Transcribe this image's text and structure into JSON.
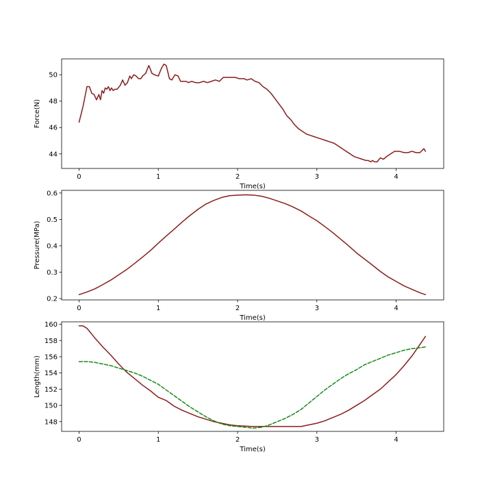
{
  "chart_data": [
    {
      "type": "line",
      "xlabel": "Time(s)",
      "ylabel": "Force(N)",
      "xlim": [
        -0.22,
        4.6
      ],
      "ylim": [
        42.9,
        51.2
      ],
      "xticks": [
        0,
        1,
        2,
        3,
        4
      ],
      "yticks": [
        44,
        46,
        48,
        50
      ],
      "grid": false,
      "series": [
        {
          "color": "#8b1a1a",
          "linestyle": "solid",
          "x": [
            0,
            0.05,
            0.1,
            0.13,
            0.16,
            0.19,
            0.22,
            0.25,
            0.27,
            0.29,
            0.31,
            0.33,
            0.35,
            0.37,
            0.39,
            0.41,
            0.43,
            0.45,
            0.48,
            0.52,
            0.55,
            0.58,
            0.61,
            0.64,
            0.66,
            0.69,
            0.72,
            0.75,
            0.78,
            0.8,
            0.84,
            0.88,
            0.92,
            0.95,
            1.0,
            1.04,
            1.07,
            1.1,
            1.14,
            1.17,
            1.21,
            1.25,
            1.28,
            1.31,
            1.35,
            1.38,
            1.42,
            1.47,
            1.52,
            1.57,
            1.62,
            1.67,
            1.72,
            1.77,
            1.82,
            1.87,
            1.92,
            1.97,
            2.02,
            2.08,
            2.12,
            2.17,
            2.22,
            2.27,
            2.32,
            2.37,
            2.42,
            2.47,
            2.52,
            2.57,
            2.62,
            2.67,
            2.72,
            2.77,
            2.82,
            2.87,
            2.92,
            2.97,
            3.02,
            3.07,
            3.12,
            3.17,
            3.22,
            3.27,
            3.32,
            3.37,
            3.42,
            3.47,
            3.52,
            3.57,
            3.62,
            3.65,
            3.68,
            3.7,
            3.73,
            3.76,
            3.8,
            3.84,
            3.88,
            3.93,
            3.98,
            4.04,
            4.1,
            4.15,
            4.2,
            4.25,
            4.3,
            4.35,
            4.37
          ],
          "y": [
            46.4,
            47.6,
            49.1,
            49.1,
            48.6,
            48.5,
            48.1,
            48.5,
            48.1,
            48.8,
            48.6,
            49.0,
            48.9,
            49.1,
            48.8,
            49.0,
            48.8,
            48.9,
            48.9,
            49.2,
            49.6,
            49.2,
            49.4,
            49.9,
            49.7,
            50.0,
            49.9,
            49.7,
            49.7,
            49.9,
            50.1,
            50.7,
            50.1,
            50.0,
            49.9,
            50.5,
            50.8,
            50.7,
            49.7,
            49.6,
            50.0,
            49.9,
            49.5,
            49.5,
            49.5,
            49.4,
            49.5,
            49.4,
            49.4,
            49.5,
            49.4,
            49.5,
            49.6,
            49.5,
            49.8,
            49.8,
            49.8,
            49.8,
            49.7,
            49.7,
            49.6,
            49.7,
            49.5,
            49.4,
            49.1,
            48.9,
            48.6,
            48.2,
            47.8,
            47.4,
            46.9,
            46.6,
            46.2,
            45.9,
            45.7,
            45.5,
            45.4,
            45.3,
            45.2,
            45.1,
            45.0,
            44.9,
            44.8,
            44.6,
            44.4,
            44.2,
            44.0,
            43.8,
            43.7,
            43.6,
            43.5,
            43.5,
            43.4,
            43.5,
            43.4,
            43.4,
            43.7,
            43.6,
            43.8,
            44.0,
            44.2,
            44.2,
            44.1,
            44.1,
            44.2,
            44.1,
            44.1,
            44.4,
            44.2
          ]
        }
      ]
    },
    {
      "type": "line",
      "xlabel": "Time(s)",
      "ylabel": "Pressure(MPa)",
      "xlim": [
        -0.22,
        4.6
      ],
      "ylim": [
        0.195,
        0.61
      ],
      "xticks": [
        0,
        1,
        2,
        3,
        4
      ],
      "yticks": [
        0.2,
        0.3,
        0.4,
        0.5,
        0.6
      ],
      "grid": false,
      "series": [
        {
          "color": "#8b1a1a",
          "linestyle": "solid",
          "x": [
            0,
            0.1,
            0.2,
            0.3,
            0.4,
            0.5,
            0.6,
            0.7,
            0.8,
            0.9,
            1.0,
            1.1,
            1.2,
            1.3,
            1.4,
            1.5,
            1.6,
            1.7,
            1.8,
            1.9,
            2.0,
            2.1,
            2.2,
            2.3,
            2.4,
            2.5,
            2.6,
            2.7,
            2.8,
            2.9,
            3.0,
            3.1,
            3.2,
            3.3,
            3.4,
            3.5,
            3.6,
            3.7,
            3.8,
            3.9,
            4.0,
            4.1,
            4.2,
            4.3,
            4.37
          ],
          "y": [
            0.215,
            0.225,
            0.237,
            0.253,
            0.27,
            0.29,
            0.31,
            0.333,
            0.357,
            0.382,
            0.41,
            0.437,
            0.463,
            0.49,
            0.515,
            0.538,
            0.558,
            0.572,
            0.583,
            0.59,
            0.592,
            0.593,
            0.592,
            0.588,
            0.58,
            0.57,
            0.56,
            0.547,
            0.532,
            0.513,
            0.495,
            0.473,
            0.45,
            0.425,
            0.4,
            0.373,
            0.35,
            0.327,
            0.303,
            0.282,
            0.265,
            0.248,
            0.235,
            0.222,
            0.215
          ]
        }
      ]
    },
    {
      "type": "line",
      "xlabel": "Time(s)",
      "ylabel": "Length(mm)",
      "xlim": [
        -0.22,
        4.6
      ],
      "ylim": [
        146.8,
        160.3
      ],
      "xticks": [
        0,
        1,
        2,
        3,
        4
      ],
      "yticks": [
        148,
        150,
        152,
        154,
        156,
        158,
        160
      ],
      "grid": false,
      "series": [
        {
          "color": "#8b1a1a",
          "linestyle": "solid",
          "x": [
            0,
            0.05,
            0.1,
            0.2,
            0.3,
            0.4,
            0.5,
            0.6,
            0.7,
            0.8,
            0.9,
            1.0,
            1.1,
            1.2,
            1.3,
            1.4,
            1.5,
            1.6,
            1.7,
            1.8,
            1.9,
            2.0,
            2.2,
            2.4,
            2.6,
            2.8,
            2.9,
            3.0,
            3.1,
            3.2,
            3.3,
            3.4,
            3.5,
            3.6,
            3.7,
            3.8,
            3.9,
            4.0,
            4.1,
            4.2,
            4.3,
            4.37
          ],
          "y": [
            159.8,
            159.8,
            159.5,
            158.3,
            157.2,
            156.2,
            155.1,
            154.1,
            153.3,
            152.5,
            151.8,
            151.0,
            150.6,
            149.9,
            149.4,
            149.0,
            148.6,
            148.3,
            148.0,
            147.8,
            147.6,
            147.5,
            147.4,
            147.4,
            147.4,
            147.4,
            147.6,
            147.8,
            148.1,
            148.5,
            148.9,
            149.4,
            150.0,
            150.6,
            151.3,
            152.0,
            152.9,
            153.8,
            154.9,
            156.1,
            157.5,
            158.5
          ]
        },
        {
          "color": "#138a13",
          "linestyle": "dashed",
          "x": [
            0,
            0.1,
            0.2,
            0.3,
            0.4,
            0.5,
            0.6,
            0.7,
            0.8,
            0.9,
            1.0,
            1.1,
            1.2,
            1.3,
            1.4,
            1.5,
            1.6,
            1.7,
            1.8,
            1.9,
            2.0,
            2.1,
            2.2,
            2.3,
            2.4,
            2.5,
            2.6,
            2.7,
            2.8,
            2.9,
            3.0,
            3.1,
            3.2,
            3.3,
            3.4,
            3.5,
            3.6,
            3.7,
            3.8,
            3.9,
            4.0,
            4.1,
            4.2,
            4.3,
            4.37
          ],
          "y": [
            155.4,
            155.4,
            155.3,
            155.1,
            154.9,
            154.6,
            154.3,
            154.0,
            153.6,
            153.1,
            152.6,
            151.9,
            151.2,
            150.5,
            149.8,
            149.2,
            148.6,
            148.1,
            147.7,
            147.5,
            147.4,
            147.3,
            147.2,
            147.3,
            147.6,
            148.0,
            148.4,
            148.9,
            149.5,
            150.3,
            151.1,
            151.9,
            152.6,
            153.3,
            153.9,
            154.4,
            155.0,
            155.4,
            155.8,
            156.2,
            156.5,
            156.8,
            157.0,
            157.1,
            157.2
          ]
        }
      ]
    }
  ]
}
